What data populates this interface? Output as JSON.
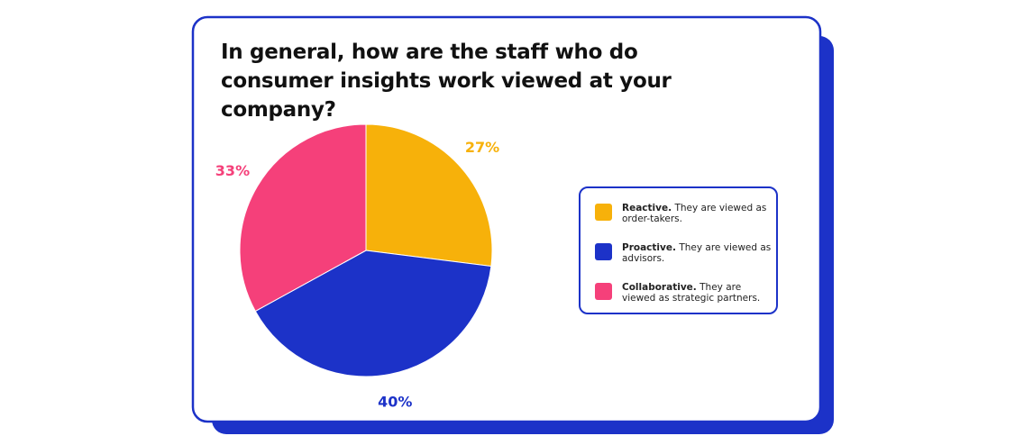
{
  "chart_data": {
    "type": "pie",
    "title": "In general, how are the staff who do consumer insights work viewed at your company?",
    "categories": [
      "Reactive.",
      "Proactive.",
      "Collaborative."
    ],
    "descriptions": [
      "They are viewed as order-takers.",
      "They are viewed as advisors.",
      "They are viewed as strategic partners."
    ],
    "values": [
      27,
      40,
      33
    ],
    "value_labels": [
      "27%",
      "40%",
      "33%"
    ],
    "colors": [
      "#f7b10a",
      "#1c32c8",
      "#f5407a"
    ],
    "legend": "right"
  }
}
